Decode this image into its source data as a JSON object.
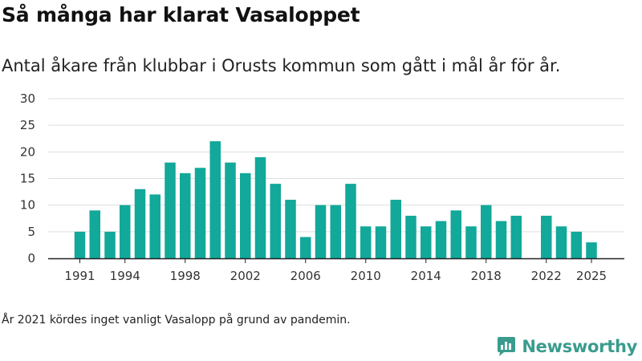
{
  "header": {
    "title": "Så många har klarat Vasaloppet",
    "subtitle": "Antal åkare från klubbar i Orusts kommun som gått i mål år för år."
  },
  "footnote": "År 2021 kördes inget vanligt Vasalopp på grund av pandemin.",
  "brand": {
    "name": "Newsworthy",
    "icon": "newsworthy-logo-icon",
    "color": "#3a9c8e"
  },
  "colors": {
    "bar": "#12a89a",
    "grid": "#dddddd",
    "axis": "#222222"
  },
  "chart_data": {
    "type": "bar",
    "title": "Så många har klarat Vasaloppet",
    "xlabel": "",
    "ylabel": "",
    "ylim": [
      0,
      30
    ],
    "yticks": [
      0,
      5,
      10,
      15,
      20,
      25,
      30
    ],
    "xticks": [
      1991,
      1994,
      1998,
      2002,
      2006,
      2010,
      2014,
      2018,
      2022,
      2025
    ],
    "grid": true,
    "categories": [
      1991,
      1992,
      1993,
      1994,
      1995,
      1996,
      1997,
      1998,
      1999,
      2000,
      2001,
      2002,
      2003,
      2004,
      2005,
      2006,
      2007,
      2008,
      2009,
      2010,
      2011,
      2012,
      2013,
      2014,
      2015,
      2016,
      2017,
      2018,
      2019,
      2020,
      2021,
      2022,
      2023,
      2024,
      2025
    ],
    "values": [
      5,
      9,
      5,
      10,
      13,
      12,
      18,
      16,
      17,
      22,
      18,
      16,
      19,
      14,
      11,
      4,
      10,
      10,
      14,
      6,
      6,
      11,
      8,
      6,
      7,
      9,
      6,
      10,
      7,
      8,
      null,
      8,
      6,
      5,
      3
    ]
  }
}
